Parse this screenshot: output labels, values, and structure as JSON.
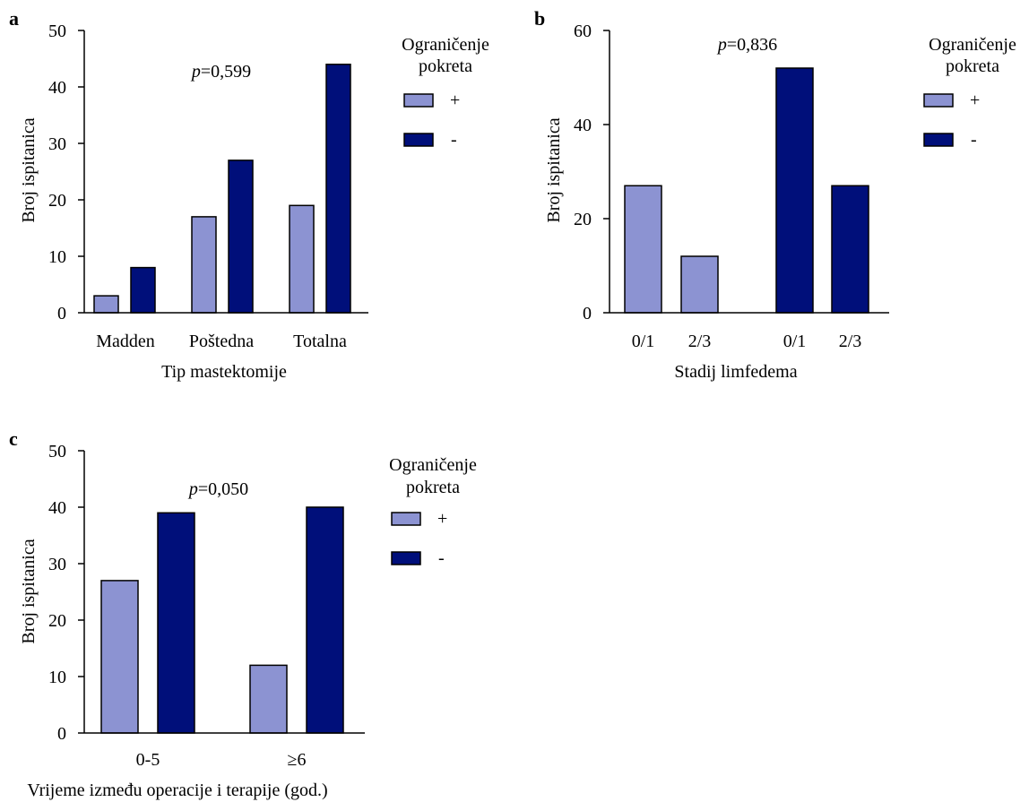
{
  "colors": {
    "plus": "#8c93d2",
    "minus": "#000f7a"
  },
  "chart_data": [
    {
      "id": "a",
      "type": "bar",
      "panel_label": "a",
      "annotation": {
        "prefix": "p",
        "text": "=0,599"
      },
      "xlabel": "Tip mastektomije",
      "ylabel": "Broj ispitanica",
      "ylim": [
        0,
        50
      ],
      "yticks": [
        0,
        10,
        20,
        30,
        40,
        50
      ],
      "categories": [
        "Madden",
        "Poštedna",
        "Totalna"
      ],
      "series": [
        {
          "name": "+",
          "values": [
            3,
            17,
            19
          ]
        },
        {
          "name": "-",
          "values": [
            8,
            27,
            44
          ]
        }
      ],
      "legend": {
        "title_line1": "Ograničenje",
        "title_line2": "pokreta",
        "position": "right"
      }
    },
    {
      "id": "b",
      "type": "bar",
      "panel_label": "b",
      "annotation": {
        "prefix": "p",
        "text": "=0,836"
      },
      "xlabel": "Stadij limfedema",
      "ylabel": "Broj ispitanica",
      "ylim": [
        0,
        60
      ],
      "yticks": [
        0,
        20,
        40,
        60
      ],
      "bars": [
        {
          "label": "0/1",
          "series": "+",
          "value": 27
        },
        {
          "label": "2/3",
          "series": "+",
          "value": 12
        },
        {
          "label": "0/1",
          "series": "-",
          "value": 52
        },
        {
          "label": "2/3",
          "series": "-",
          "value": 27
        }
      ],
      "legend": {
        "title_line1": "Ograničenje",
        "title_line2": "pokreta",
        "position": "right"
      }
    },
    {
      "id": "c",
      "type": "bar",
      "panel_label": "c",
      "annotation": {
        "prefix": "p",
        "text": "=0,050"
      },
      "xlabel": "Vrijeme između operacije i terapije (god.)",
      "ylabel": "Broj ispitanica",
      "ylim": [
        0,
        50
      ],
      "yticks": [
        0,
        10,
        20,
        30,
        40,
        50
      ],
      "categories": [
        "0-5",
        "≥6"
      ],
      "series": [
        {
          "name": "+",
          "values": [
            27,
            12
          ]
        },
        {
          "name": "-",
          "values": [
            39,
            40
          ]
        }
      ],
      "legend": {
        "title_line1": "Ograničenje",
        "title_line2": "pokreta",
        "position": "right"
      }
    }
  ]
}
